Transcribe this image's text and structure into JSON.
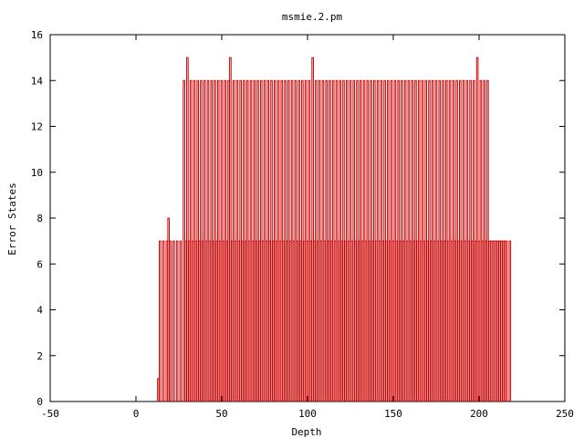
{
  "chart_data": {
    "type": "bar",
    "title": "msmie.2.pm",
    "xlabel": "Depth",
    "ylabel": "Error States",
    "xlim": [
      -50,
      250
    ],
    "ylim": [
      0,
      16
    ],
    "xticks": [
      -50,
      0,
      50,
      100,
      150,
      200,
      250
    ],
    "yticks": [
      0,
      2,
      4,
      6,
      8,
      10,
      12,
      14,
      16
    ],
    "grid": false,
    "legend": "none",
    "bar_style": "impulse-outline",
    "color": "#cc0000",
    "series": [
      {
        "values": [
          [
            13,
            1
          ],
          [
            14,
            7
          ],
          [
            15,
            0
          ],
          [
            16,
            7
          ],
          [
            17,
            0
          ],
          [
            18,
            7
          ],
          [
            19,
            8
          ],
          [
            20,
            7
          ],
          [
            21,
            0
          ],
          [
            22,
            7
          ],
          [
            23,
            0
          ],
          [
            24,
            7
          ],
          [
            25,
            0
          ],
          [
            26,
            7
          ],
          [
            27,
            0
          ],
          [
            28,
            14
          ],
          [
            29,
            7
          ],
          [
            30,
            15
          ],
          [
            31,
            7
          ],
          [
            32,
            14
          ],
          [
            33,
            7
          ],
          [
            34,
            14
          ],
          [
            35,
            7
          ],
          [
            36,
            14
          ],
          [
            37,
            7
          ],
          [
            38,
            14
          ],
          [
            39,
            7
          ],
          [
            40,
            14
          ],
          [
            41,
            7
          ],
          [
            42,
            14
          ],
          [
            43,
            7
          ],
          [
            44,
            14
          ],
          [
            45,
            7
          ],
          [
            46,
            14
          ],
          [
            47,
            7
          ],
          [
            48,
            14
          ],
          [
            49,
            7
          ],
          [
            50,
            14
          ],
          [
            51,
            7
          ],
          [
            52,
            14
          ],
          [
            53,
            7
          ],
          [
            54,
            14
          ],
          [
            55,
            15
          ],
          [
            56,
            7
          ],
          [
            57,
            14
          ],
          [
            58,
            7
          ],
          [
            59,
            14
          ],
          [
            60,
            7
          ],
          [
            61,
            14
          ],
          [
            62,
            7
          ],
          [
            63,
            14
          ],
          [
            64,
            7
          ],
          [
            65,
            14
          ],
          [
            66,
            7
          ],
          [
            67,
            14
          ],
          [
            68,
            7
          ],
          [
            69,
            14
          ],
          [
            70,
            7
          ],
          [
            71,
            14
          ],
          [
            72,
            7
          ],
          [
            73,
            14
          ],
          [
            74,
            7
          ],
          [
            75,
            14
          ],
          [
            76,
            7
          ],
          [
            77,
            14
          ],
          [
            78,
            7
          ],
          [
            79,
            14
          ],
          [
            80,
            7
          ],
          [
            81,
            14
          ],
          [
            82,
            7
          ],
          [
            83,
            14
          ],
          [
            84,
            7
          ],
          [
            85,
            14
          ],
          [
            86,
            7
          ],
          [
            87,
            14
          ],
          [
            88,
            7
          ],
          [
            89,
            14
          ],
          [
            90,
            7
          ],
          [
            91,
            14
          ],
          [
            92,
            7
          ],
          [
            93,
            14
          ],
          [
            94,
            7
          ],
          [
            95,
            14
          ],
          [
            96,
            7
          ],
          [
            97,
            14
          ],
          [
            98,
            7
          ],
          [
            99,
            14
          ],
          [
            100,
            7
          ],
          [
            101,
            14
          ],
          [
            102,
            7
          ],
          [
            103,
            15
          ],
          [
            104,
            7
          ],
          [
            105,
            14
          ],
          [
            106,
            7
          ],
          [
            107,
            14
          ],
          [
            108,
            7
          ],
          [
            109,
            14
          ],
          [
            110,
            7
          ],
          [
            111,
            14
          ],
          [
            112,
            7
          ],
          [
            113,
            14
          ],
          [
            114,
            7
          ],
          [
            115,
            14
          ],
          [
            116,
            7
          ],
          [
            117,
            14
          ],
          [
            118,
            7
          ],
          [
            119,
            14
          ],
          [
            120,
            7
          ],
          [
            121,
            14
          ],
          [
            122,
            7
          ],
          [
            123,
            14
          ],
          [
            124,
            7
          ],
          [
            125,
            14
          ],
          [
            126,
            7
          ],
          [
            127,
            14
          ],
          [
            128,
            7
          ],
          [
            129,
            14
          ],
          [
            130,
            7
          ],
          [
            131,
            14
          ],
          [
            132,
            7
          ],
          [
            133,
            14
          ],
          [
            134,
            7
          ],
          [
            135,
            14
          ],
          [
            136,
            7
          ],
          [
            137,
            14
          ],
          [
            138,
            7
          ],
          [
            139,
            14
          ],
          [
            140,
            7
          ],
          [
            141,
            14
          ],
          [
            142,
            7
          ],
          [
            143,
            14
          ],
          [
            144,
            7
          ],
          [
            145,
            14
          ],
          [
            146,
            7
          ],
          [
            147,
            14
          ],
          [
            148,
            7
          ],
          [
            149,
            14
          ],
          [
            150,
            7
          ],
          [
            151,
            14
          ],
          [
            152,
            7
          ],
          [
            153,
            14
          ],
          [
            154,
            7
          ],
          [
            155,
            14
          ],
          [
            156,
            7
          ],
          [
            157,
            14
          ],
          [
            158,
            7
          ],
          [
            159,
            14
          ],
          [
            160,
            7
          ],
          [
            161,
            14
          ],
          [
            162,
            7
          ],
          [
            163,
            14
          ],
          [
            164,
            7
          ],
          [
            165,
            14
          ],
          [
            166,
            7
          ],
          [
            167,
            14
          ],
          [
            168,
            7
          ],
          [
            169,
            14
          ],
          [
            170,
            7
          ],
          [
            171,
            14
          ],
          [
            172,
            7
          ],
          [
            173,
            14
          ],
          [
            174,
            7
          ],
          [
            175,
            14
          ],
          [
            176,
            7
          ],
          [
            177,
            14
          ],
          [
            178,
            7
          ],
          [
            179,
            14
          ],
          [
            180,
            7
          ],
          [
            181,
            14
          ],
          [
            182,
            7
          ],
          [
            183,
            14
          ],
          [
            184,
            7
          ],
          [
            185,
            14
          ],
          [
            186,
            7
          ],
          [
            187,
            14
          ],
          [
            188,
            7
          ],
          [
            189,
            14
          ],
          [
            190,
            7
          ],
          [
            191,
            14
          ],
          [
            192,
            7
          ],
          [
            193,
            14
          ],
          [
            194,
            7
          ],
          [
            195,
            14
          ],
          [
            196,
            7
          ],
          [
            197,
            14
          ],
          [
            198,
            7
          ],
          [
            199,
            15
          ],
          [
            200,
            7
          ],
          [
            201,
            14
          ],
          [
            202,
            7
          ],
          [
            203,
            14
          ],
          [
            204,
            7
          ],
          [
            205,
            14
          ],
          [
            206,
            7
          ],
          [
            207,
            7
          ],
          [
            208,
            7
          ],
          [
            209,
            7
          ],
          [
            210,
            7
          ],
          [
            211,
            7
          ],
          [
            212,
            7
          ],
          [
            213,
            7
          ],
          [
            214,
            7
          ],
          [
            215,
            7
          ],
          [
            216,
            7
          ],
          [
            217,
            0
          ],
          [
            218,
            7
          ]
        ]
      }
    ]
  }
}
